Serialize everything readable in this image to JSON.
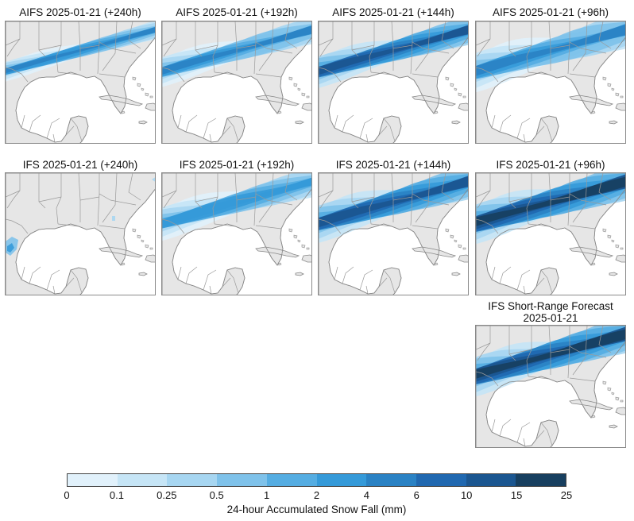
{
  "panels": [
    {
      "title": "AIFS 2025-01-21 (+240h)",
      "model": "AIFS",
      "lead": "+240h",
      "snow_extent": 0.5,
      "snow_intensity": 0.8
    },
    {
      "title": "AIFS 2025-01-21 (+192h)",
      "model": "AIFS",
      "lead": "+192h",
      "snow_extent": 0.75,
      "snow_intensity": 0.75
    },
    {
      "title": "AIFS 2025-01-21 (+144h)",
      "model": "AIFS",
      "lead": "+144h",
      "snow_extent": 0.8,
      "snow_intensity": 0.85
    },
    {
      "title": "AIFS 2025-01-21 (+96h)",
      "model": "AIFS",
      "lead": "+96h",
      "snow_extent": 1.0,
      "snow_intensity": 0.75
    },
    {
      "title": "IFS 2025-01-21 (+240h)",
      "model": "IFS",
      "lead": "+240h",
      "snow_extent": 0.05,
      "snow_intensity": 0.2
    },
    {
      "title": "IFS 2025-01-21 (+192h)",
      "model": "IFS",
      "lead": "+192h",
      "snow_extent": 0.85,
      "snow_intensity": 0.7
    },
    {
      "title": "IFS 2025-01-21 (+144h)",
      "model": "IFS",
      "lead": "+144h",
      "snow_extent": 0.95,
      "snow_intensity": 0.9
    },
    {
      "title": "IFS 2025-01-21 (+96h)",
      "model": "IFS",
      "lead": "+96h",
      "snow_extent": 1.0,
      "snow_intensity": 0.95
    },
    {
      "title": "IFS Short-Range Forecast",
      "title_line2": "2025-01-21",
      "model": "IFS",
      "lead": "short-range",
      "snow_extent": 1.0,
      "snow_intensity": 0.95
    }
  ],
  "colorbar": {
    "label": "24-hour Accumulated Snow Fall (mm)",
    "ticks": [
      "0",
      "0.1",
      "0.25",
      "0.5",
      "1",
      "2",
      "4",
      "6",
      "10",
      "15",
      "25"
    ],
    "colors": [
      "#ffffff",
      "#e1f1fb",
      "#c6e5f6",
      "#a7d6f1",
      "#7fc2ea",
      "#55ade2",
      "#359ad9",
      "#2a82c4",
      "#2068b0",
      "#1b5690",
      "#173f5f"
    ]
  }
}
